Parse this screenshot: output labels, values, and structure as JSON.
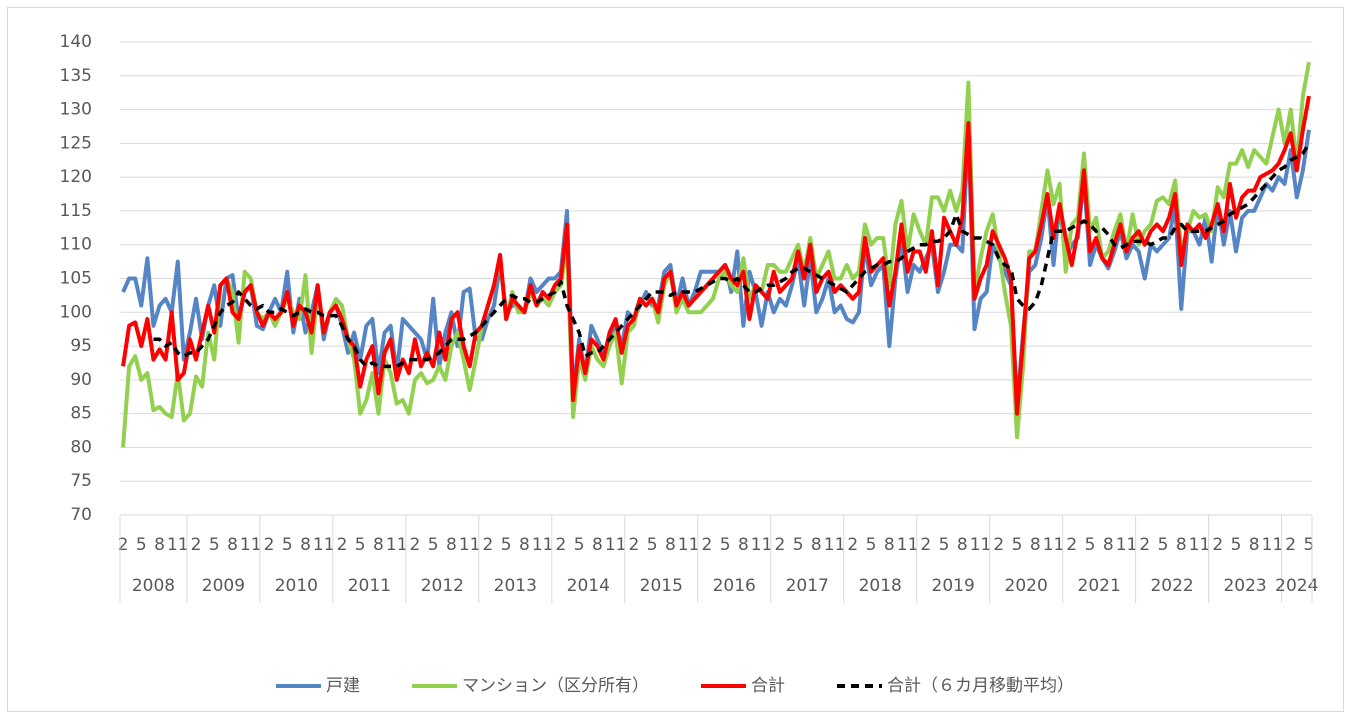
{
  "chart_data": {
    "type": "line",
    "categories": [
      "2",
      null,
      null,
      "5",
      null,
      null,
      "8",
      null,
      null,
      "11",
      null,
      null,
      "2",
      null,
      null,
      "5",
      null,
      null,
      "8",
      null,
      null,
      "11",
      null,
      null,
      "2",
      null,
      null,
      "5",
      null,
      null,
      "8",
      null,
      null,
      "11",
      null,
      null,
      "2",
      null,
      null,
      "5",
      null,
      null,
      "8",
      null,
      null,
      "11",
      null,
      null,
      "2",
      null,
      null,
      "5",
      null,
      null,
      "8",
      null,
      null,
      "11",
      null,
      null,
      "2",
      null,
      null,
      "5",
      null,
      null,
      "8",
      null,
      null,
      "11",
      null,
      null,
      "2",
      null,
      null,
      "5",
      null,
      null,
      "8",
      null,
      null,
      "11",
      null,
      null,
      "2",
      null,
      null,
      "5",
      null,
      null,
      "8",
      null,
      null,
      "11",
      null,
      null,
      "2",
      null,
      null,
      "5",
      null,
      null,
      "8",
      null,
      null,
      "11",
      null,
      null,
      "2",
      null,
      null,
      "5",
      null,
      null,
      "8",
      null,
      null,
      "11",
      null,
      null,
      "2",
      null,
      null,
      "5",
      null,
      null,
      "8",
      null,
      null,
      "11",
      null,
      null,
      "2",
      null,
      null,
      "5",
      null,
      null,
      "8",
      null,
      null,
      "11",
      null,
      null,
      "2",
      null,
      null,
      "5",
      null,
      null,
      "8",
      null,
      null,
      "11",
      null,
      null,
      "2",
      null,
      null,
      "5",
      null,
      null,
      "8",
      null,
      null,
      "11",
      null,
      null,
      "2",
      null,
      null,
      "5",
      null,
      null,
      "8",
      null,
      null,
      "11",
      null,
      null,
      "2",
      null,
      null,
      "5",
      null,
      null,
      "8",
      null,
      null,
      "11",
      null,
      null,
      "2",
      null,
      null,
      "5"
    ],
    "x_groups": [
      {
        "label": "2008",
        "span": 11
      },
      {
        "label": "2009",
        "span": 12
      },
      {
        "label": "2010",
        "span": 12
      },
      {
        "label": "2011",
        "span": 12
      },
      {
        "label": "2012",
        "span": 12
      },
      {
        "label": "2013",
        "span": 12
      },
      {
        "label": "2014",
        "span": 12
      },
      {
        "label": "2015",
        "span": 12
      },
      {
        "label": "2016",
        "span": 12
      },
      {
        "label": "2017",
        "span": 12
      },
      {
        "label": "2018",
        "span": 12
      },
      {
        "label": "2019",
        "span": 12
      },
      {
        "label": "2020",
        "span": 12
      },
      {
        "label": "2021",
        "span": 12
      },
      {
        "label": "2022",
        "span": 12
      },
      {
        "label": "2023",
        "span": 12
      },
      {
        "label": "2024",
        "span": 5
      }
    ],
    "ylim": [
      70,
      140
    ],
    "yticks": [
      70,
      75,
      80,
      85,
      90,
      95,
      100,
      105,
      110,
      115,
      120,
      125,
      130,
      135,
      140
    ],
    "grid": true,
    "legend": "bottom",
    "series": [
      {
        "name": "戸建",
        "color": "#5585c5",
        "values": [
          103,
          105,
          105,
          101,
          108,
          98,
          101,
          102,
          100,
          107.5,
          93,
          97,
          102,
          96,
          101,
          104,
          98,
          105,
          105.5,
          99,
          103,
          104,
          98,
          97.5,
          100,
          102,
          100,
          106,
          97,
          102,
          97,
          100,
          104,
          96,
          100,
          101,
          98,
          94,
          97,
          93,
          98,
          99,
          91,
          97,
          98,
          91,
          99,
          98,
          97,
          96,
          93,
          102,
          92,
          97,
          100,
          95,
          103,
          103.5,
          96,
          96,
          99,
          101,
          107,
          100,
          101,
          101,
          100,
          105,
          103,
          104,
          105,
          105,
          106,
          115,
          88,
          96,
          91,
          98,
          96,
          94,
          96,
          98,
          95,
          100,
          99,
          101,
          103,
          101,
          101,
          106,
          107,
          101,
          105,
          101,
          103,
          106,
          106,
          106,
          106,
          107,
          103,
          109,
          98,
          106,
          103,
          98,
          103,
          100,
          102,
          101,
          104,
          108,
          101,
          108,
          100,
          102,
          105,
          100,
          101,
          99,
          98.5,
          100,
          110,
          104,
          106,
          107,
          95,
          105,
          111,
          103,
          107,
          106,
          108,
          110,
          103,
          106,
          110,
          110,
          109,
          127,
          97.5,
          102,
          103,
          110,
          108,
          106,
          104,
          86,
          97,
          106,
          107,
          111,
          117,
          107,
          116,
          108,
          110,
          111,
          120,
          107,
          110,
          108,
          106.5,
          109,
          112,
          108,
          110,
          109,
          105,
          110,
          109,
          110,
          111,
          116,
          100.5,
          112,
          112,
          110,
          114,
          107.5,
          116,
          110,
          115,
          109,
          114,
          115,
          115,
          117,
          119,
          118,
          120,
          119,
          124,
          117,
          121,
          127
        ]
      },
      {
        "name": "マンション（区分所有）",
        "color": "#92d050",
        "values": [
          80,
          92,
          93.5,
          90,
          91,
          85.5,
          86,
          85,
          84.5,
          91,
          84,
          85,
          90.5,
          89,
          97,
          93,
          104,
          105,
          103,
          95.5,
          106,
          105,
          100,
          99,
          100,
          98,
          100,
          102,
          100,
          99,
          105.5,
          94,
          103,
          97,
          100,
          102,
          101,
          96,
          93,
          85,
          87,
          91,
          85,
          93,
          91,
          86.5,
          87,
          85,
          90,
          91,
          89.5,
          90,
          92,
          90,
          95,
          97,
          93,
          88.5,
          93,
          98,
          101,
          104,
          108,
          99,
          103,
          100,
          100,
          103,
          101,
          102,
          101,
          103,
          104,
          110,
          84.5,
          93,
          90,
          95,
          93,
          92,
          95,
          97,
          89.5,
          97,
          98,
          102,
          101,
          102,
          98.5,
          104,
          106,
          100,
          102,
          100,
          100,
          100,
          101,
          102,
          105,
          106,
          104,
          103,
          108,
          102,
          104,
          103,
          107,
          107,
          106,
          106,
          108,
          110,
          106,
          111,
          105,
          107,
          109,
          105,
          105,
          107,
          105,
          106,
          113,
          110,
          111,
          111,
          104,
          113,
          116.5,
          109,
          114.5,
          112,
          110,
          117,
          117,
          115,
          118,
          115,
          118,
          134,
          103,
          108,
          112,
          114.5,
          109,
          103,
          98,
          81.5,
          92,
          109,
          109,
          115,
          121,
          116,
          119,
          106,
          113,
          114,
          123.5,
          112,
          114,
          108,
          109,
          112,
          114.5,
          109,
          114.5,
          110,
          112,
          113,
          116.5,
          117,
          116,
          119.5,
          109,
          112,
          115,
          114,
          114.5,
          112,
          118.5,
          117,
          122,
          122,
          124,
          121.5,
          124,
          123,
          122,
          126,
          130,
          125,
          130,
          122,
          132,
          137
        ]
      },
      {
        "name": "合計",
        "color": "#ff0000",
        "values": [
          92,
          98,
          98.5,
          95,
          99,
          93,
          94.5,
          93,
          100,
          90,
          91,
          96,
          93,
          97,
          101,
          97,
          104,
          105,
          100,
          99,
          103,
          104,
          100,
          98,
          100,
          99,
          100,
          103,
          98,
          101,
          100,
          97,
          104,
          97,
          100,
          101,
          99,
          96,
          95,
          89,
          93,
          95,
          88,
          94,
          96,
          90,
          93,
          91,
          96,
          92,
          94,
          92,
          97,
          93,
          99,
          100,
          95,
          92,
          97,
          98,
          101,
          104,
          108.5,
          99,
          102,
          101,
          100,
          104,
          101,
          103,
          102,
          104,
          105,
          113,
          87,
          95,
          91,
          96,
          95,
          93,
          97,
          99,
          94,
          98,
          99,
          102,
          101,
          102,
          100,
          105,
          106,
          101,
          103,
          101,
          102,
          103,
          104,
          105,
          106,
          107,
          105,
          104,
          106,
          99,
          104,
          103,
          102,
          106,
          103,
          104,
          105,
          109,
          105,
          110,
          103,
          105,
          106,
          103,
          104,
          103,
          102,
          103,
          111,
          106,
          107,
          108,
          101,
          106,
          113,
          106,
          109,
          109,
          106,
          112,
          104,
          114,
          112,
          110,
          114,
          128,
          102,
          105,
          107,
          112,
          110,
          108,
          105,
          85,
          96,
          108,
          109,
          113,
          117.5,
          111,
          116,
          111,
          107,
          112,
          121,
          109,
          111,
          108,
          107,
          110,
          113,
          109,
          111,
          112,
          110,
          112,
          113,
          112,
          114,
          117.5,
          107,
          113,
          112,
          113,
          111,
          113,
          116,
          112,
          119,
          114,
          117,
          118,
          118,
          120,
          120.5,
          121,
          122,
          124,
          126.5,
          121,
          127,
          132
        ]
      },
      {
        "name": "合計（６カ月移動平均）",
        "color": "#000000",
        "dashed": true,
        "values": [
          null,
          null,
          null,
          null,
          null,
          96,
          96,
          95,
          95.5,
          94,
          93.5,
          94,
          94,
          95,
          96,
          98,
          100,
          101,
          101.5,
          103,
          102,
          101,
          100.5,
          101,
          100,
          100,
          100.5,
          100,
          99.5,
          100,
          100.5,
          100,
          100,
          99.5,
          99.5,
          99.5,
          98,
          96,
          95,
          93,
          92,
          92.5,
          92,
          92,
          92,
          92,
          92.5,
          93,
          93,
          93,
          93,
          93.5,
          94,
          95,
          96,
          96,
          96,
          96.5,
          97,
          98,
          99,
          100,
          101,
          102,
          102.5,
          102,
          102,
          101.5,
          101.5,
          102,
          102.5,
          103,
          104.5,
          101,
          99,
          97,
          93.5,
          94,
          94,
          95,
          96,
          97,
          98,
          99,
          100,
          101,
          102,
          103,
          103,
          103,
          102.5,
          103,
          103,
          103,
          103,
          103.5,
          104,
          104.5,
          105,
          105,
          104.5,
          105,
          104,
          103,
          103,
          103.5,
          104,
          104,
          104.5,
          105,
          106,
          106.5,
          106.5,
          106,
          105.5,
          105,
          104.5,
          104,
          103.5,
          103,
          104,
          105,
          106,
          106.5,
          107,
          107,
          107.5,
          107.5,
          108,
          109,
          109.5,
          110,
          110,
          110.5,
          110.5,
          111,
          112,
          114.5,
          112,
          111.5,
          111,
          111,
          110.5,
          110,
          108,
          107,
          106.5,
          102,
          101,
          100.5,
          101.5,
          104,
          108,
          112,
          112,
          112,
          112.5,
          113,
          113.5,
          113,
          112,
          112.5,
          111.5,
          110,
          109.5,
          110,
          110.5,
          110.5,
          110.5,
          110,
          110.5,
          111,
          111,
          112.5,
          113,
          112,
          112,
          112,
          112,
          112.5,
          113,
          113.5,
          114.5,
          115,
          115.5,
          116,
          117,
          118,
          119,
          120,
          121,
          121.5,
          122.5,
          123,
          123.5,
          125
        ]
      }
    ]
  }
}
